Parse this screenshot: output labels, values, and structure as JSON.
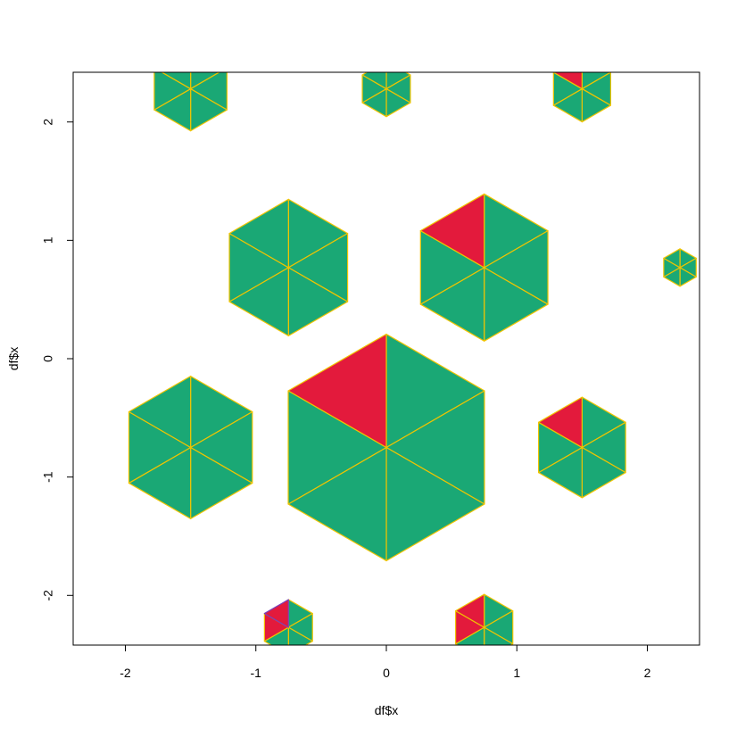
{
  "colors": {
    "fill": "#1aa875",
    "highlight": "#e31a3c",
    "edge": "#f0c400",
    "accent_edge": "#7b3fb8",
    "axis": "#000000"
  },
  "chart_data": {
    "type": "scatter",
    "title": "",
    "xlabel": "df$x",
    "ylabel": "df$x",
    "xlim": [
      -2.4,
      2.4
    ],
    "ylim": [
      -2.42,
      2.42
    ],
    "xticks": [
      -2,
      -1,
      0,
      1,
      2
    ],
    "yticks": [
      -2,
      -1,
      0,
      1,
      2
    ],
    "xtick_labels": [
      "-2",
      "-1",
      "0",
      "1",
      "2"
    ],
    "ytick_labels": [
      "-2",
      "-1",
      "0",
      "1",
      "2"
    ],
    "grid": false,
    "legend": "none",
    "marker": "hexagon-six-sectors",
    "points": [
      {
        "x": -1.5,
        "y": 2.28,
        "size": 0.56,
        "highlight": []
      },
      {
        "x": 0.0,
        "y": 2.28,
        "size": 0.37,
        "highlight": []
      },
      {
        "x": 1.5,
        "y": 2.28,
        "size": 0.44,
        "highlight": [
          5
        ]
      },
      {
        "x": -0.75,
        "y": 0.77,
        "size": 0.91,
        "highlight": []
      },
      {
        "x": 0.75,
        "y": 0.77,
        "size": 0.98,
        "highlight": [
          5
        ]
      },
      {
        "x": 2.25,
        "y": 0.77,
        "size": 0.25,
        "highlight": []
      },
      {
        "x": -1.5,
        "y": -0.75,
        "size": 0.95,
        "highlight": []
      },
      {
        "x": 0.0,
        "y": -0.75,
        "size": 1.51,
        "highlight": [
          5
        ]
      },
      {
        "x": 1.5,
        "y": -0.75,
        "size": 0.67,
        "highlight": [
          5
        ]
      },
      {
        "x": -0.75,
        "y": -2.27,
        "size": 0.37,
        "highlight": [
          4,
          5
        ],
        "accent_edge_sector": 5
      },
      {
        "x": 0.75,
        "y": -2.27,
        "size": 0.44,
        "highlight": [
          4,
          5
        ]
      }
    ]
  }
}
